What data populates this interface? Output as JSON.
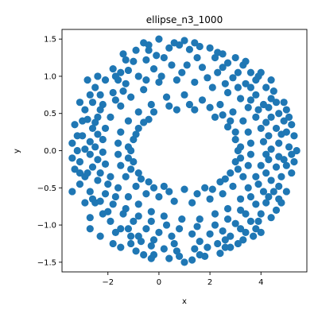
{
  "chart_data": {
    "type": "scatter",
    "title": "ellipse_n3_1000",
    "xlabel": "x",
    "ylabel": "y",
    "xlim": [
      -3.8,
      5.8
    ],
    "ylim": [
      -1.63,
      1.63
    ],
    "x_ticks": [
      -2,
      0,
      2,
      4
    ],
    "y_ticks": [
      -1.5,
      -1.0,
      -0.5,
      0.0,
      0.5,
      1.0,
      1.5
    ],
    "x_tick_labels": [
      "−2",
      "0",
      "2",
      "4"
    ],
    "y_tick_labels": [
      "−1.5",
      "−1.0",
      "−0.5",
      "0.0",
      "0.5",
      "1.0",
      "1.5"
    ],
    "grid": false,
    "marker_color": "#1f77b4",
    "series": [
      {
        "points": [
          [
            1.0,
            1.48
          ],
          [
            0.0,
            1.5
          ],
          [
            -0.6,
            1.45
          ],
          [
            1.6,
            1.4
          ],
          [
            2.0,
            1.38
          ],
          [
            -0.9,
            1.35
          ],
          [
            2.5,
            1.3
          ],
          [
            -1.4,
            1.3
          ],
          [
            3.0,
            1.25
          ],
          [
            -1.5,
            1.05
          ],
          [
            3.6,
            1.05
          ],
          [
            4.0,
            1.05
          ],
          [
            -2.4,
            1.0
          ],
          [
            -2.8,
            0.95
          ],
          [
            4.4,
            0.95
          ],
          [
            4.5,
            0.8
          ],
          [
            -3.1,
            0.65
          ],
          [
            4.9,
            0.65
          ],
          [
            5.0,
            0.55
          ],
          [
            -3.3,
            0.35
          ],
          [
            5.2,
            0.35
          ],
          [
            5.3,
            0.2
          ],
          [
            -3.4,
            0.1
          ],
          [
            5.4,
            0.0
          ],
          [
            -3.4,
            -0.1
          ],
          [
            5.3,
            -0.15
          ],
          [
            -3.3,
            -0.25
          ],
          [
            5.2,
            -0.3
          ],
          [
            -3.1,
            -0.45
          ],
          [
            5.0,
            -0.55
          ],
          [
            -3.4,
            -0.55
          ],
          [
            4.8,
            -0.7
          ],
          [
            -2.9,
            -0.7
          ],
          [
            4.6,
            -0.8
          ],
          [
            -2.7,
            -0.9
          ],
          [
            4.4,
            -0.9
          ],
          [
            -2.7,
            -1.05
          ],
          [
            4.0,
            -1.1
          ],
          [
            -2.3,
            -1.15
          ],
          [
            3.7,
            -1.15
          ],
          [
            -1.8,
            -1.25
          ],
          [
            3.1,
            -1.25
          ],
          [
            -1.5,
            -1.3
          ],
          [
            2.8,
            -1.3
          ],
          [
            -0.9,
            -1.35
          ],
          [
            2.4,
            -1.38
          ],
          [
            -0.6,
            -1.4
          ],
          [
            1.8,
            -1.42
          ],
          [
            -0.3,
            -1.45
          ],
          [
            1.3,
            -1.47
          ],
          [
            0.4,
            -1.45
          ],
          [
            1.0,
            -1.5
          ],
          [
            -0.4,
            1.35
          ],
          [
            0.4,
            1.38
          ],
          [
            0.8,
            1.42
          ],
          [
            1.2,
            1.36
          ],
          [
            -0.1,
            1.28
          ],
          [
            2.2,
            1.25
          ],
          [
            -1.0,
            1.2
          ],
          [
            2.7,
            1.18
          ],
          [
            3.3,
            1.15
          ],
          [
            -1.8,
            1.1
          ],
          [
            -2.1,
            0.95
          ],
          [
            3.8,
            0.95
          ],
          [
            -2.5,
            0.85
          ],
          [
            4.2,
            0.85
          ],
          [
            -2.7,
            0.75
          ],
          [
            4.4,
            0.7
          ],
          [
            -2.9,
            0.55
          ],
          [
            4.7,
            0.5
          ],
          [
            -3.0,
            0.4
          ],
          [
            4.9,
            0.4
          ],
          [
            -3.2,
            0.2
          ],
          [
            5.0,
            0.25
          ],
          [
            -3.2,
            0.0
          ],
          [
            5.1,
            0.05
          ],
          [
            -3.1,
            -0.15
          ],
          [
            5.0,
            -0.2
          ],
          [
            -2.9,
            -0.35
          ],
          [
            4.8,
            -0.35
          ],
          [
            -2.7,
            -0.55
          ],
          [
            4.5,
            -0.55
          ],
          [
            -2.5,
            -0.7
          ],
          [
            4.2,
            -0.7
          ],
          [
            -2.2,
            -0.85
          ],
          [
            4.0,
            -0.85
          ],
          [
            -1.9,
            -0.95
          ],
          [
            3.6,
            -0.95
          ],
          [
            -1.5,
            -1.05
          ],
          [
            3.2,
            -1.05
          ],
          [
            -1.1,
            -1.15
          ],
          [
            2.8,
            -1.15
          ],
          [
            -0.7,
            -1.22
          ],
          [
            2.3,
            -1.25
          ],
          [
            -0.3,
            -1.28
          ],
          [
            1.9,
            -1.3
          ],
          [
            0.2,
            -1.32
          ],
          [
            1.4,
            -1.32
          ],
          [
            0.7,
            -1.35
          ],
          [
            -0.2,
            1.1
          ],
          [
            0.5,
            1.15
          ],
          [
            1.1,
            1.15
          ],
          [
            1.7,
            1.12
          ],
          [
            2.3,
            1.05
          ],
          [
            -0.8,
            1.0
          ],
          [
            2.9,
            0.98
          ],
          [
            -1.3,
            0.9
          ],
          [
            3.4,
            0.9
          ],
          [
            -1.8,
            0.78
          ],
          [
            3.8,
            0.75
          ],
          [
            -2.2,
            0.62
          ],
          [
            4.1,
            0.62
          ],
          [
            -2.4,
            0.45
          ],
          [
            4.4,
            0.45
          ],
          [
            -2.6,
            0.3
          ],
          [
            4.6,
            0.3
          ],
          [
            -2.7,
            0.12
          ],
          [
            4.7,
            0.1
          ],
          [
            -2.7,
            -0.05
          ],
          [
            4.7,
            -0.08
          ],
          [
            -2.6,
            -0.22
          ],
          [
            4.6,
            -0.22
          ],
          [
            -2.4,
            -0.4
          ],
          [
            4.4,
            -0.4
          ],
          [
            -2.1,
            -0.58
          ],
          [
            4.1,
            -0.55
          ],
          [
            -1.8,
            -0.72
          ],
          [
            3.8,
            -0.72
          ],
          [
            -1.4,
            -0.85
          ],
          [
            3.4,
            -0.85
          ],
          [
            -1.0,
            -0.95
          ],
          [
            3.0,
            -0.98
          ],
          [
            -0.5,
            -1.05
          ],
          [
            2.5,
            -1.08
          ],
          [
            0.0,
            -1.1
          ],
          [
            2.0,
            -1.12
          ],
          [
            0.5,
            -1.15
          ],
          [
            1.3,
            -1.12
          ],
          [
            0.0,
            0.92
          ],
          [
            0.7,
            0.95
          ],
          [
            1.4,
            0.92
          ],
          [
            2.1,
            0.85
          ],
          [
            -0.6,
            0.82
          ],
          [
            2.7,
            0.78
          ],
          [
            -1.1,
            0.72
          ],
          [
            3.2,
            0.7
          ],
          [
            -1.5,
            0.6
          ],
          [
            3.5,
            0.58
          ],
          [
            -1.9,
            0.45
          ],
          [
            3.8,
            0.45
          ],
          [
            -2.1,
            0.3
          ],
          [
            4.0,
            0.3
          ],
          [
            -2.2,
            0.15
          ],
          [
            4.1,
            0.12
          ],
          [
            -2.2,
            -0.02
          ],
          [
            4.2,
            -0.05
          ],
          [
            -2.1,
            -0.18
          ],
          [
            4.0,
            -0.2
          ],
          [
            -1.9,
            -0.35
          ],
          [
            3.8,
            -0.35
          ],
          [
            -1.6,
            -0.5
          ],
          [
            3.5,
            -0.5
          ],
          [
            -1.2,
            -0.62
          ],
          [
            3.2,
            -0.65
          ],
          [
            -0.8,
            -0.72
          ],
          [
            2.7,
            -0.78
          ],
          [
            -0.3,
            -0.82
          ],
          [
            2.2,
            -0.85
          ],
          [
            0.2,
            -0.88
          ],
          [
            1.6,
            -0.92
          ],
          [
            0.9,
            -0.92
          ],
          [
            0.3,
            0.72
          ],
          [
            1.0,
            0.75
          ],
          [
            1.7,
            0.68
          ],
          [
            -0.3,
            0.62
          ],
          [
            2.4,
            0.62
          ],
          [
            -0.8,
            0.52
          ],
          [
            2.9,
            0.52
          ],
          [
            -1.2,
            0.4
          ],
          [
            3.3,
            0.4
          ],
          [
            -1.5,
            0.25
          ],
          [
            3.5,
            0.25
          ],
          [
            -1.6,
            0.1
          ],
          [
            3.6,
            0.1
          ],
          [
            -1.6,
            -0.05
          ],
          [
            3.6,
            -0.05
          ],
          [
            -1.5,
            -0.2
          ],
          [
            3.5,
            -0.2
          ],
          [
            -1.3,
            -0.35
          ],
          [
            3.3,
            -0.35
          ],
          [
            -0.9,
            -0.48
          ],
          [
            2.9,
            -0.48
          ],
          [
            -0.5,
            -0.58
          ],
          [
            2.5,
            -0.58
          ],
          [
            0.0,
            -0.62
          ],
          [
            2.0,
            -0.65
          ],
          [
            0.6,
            -0.68
          ],
          [
            1.3,
            -0.7
          ],
          [
            0.7,
            0.55
          ],
          [
            1.4,
            0.55
          ],
          [
            -0.4,
            0.42
          ],
          [
            2.2,
            0.45
          ],
          [
            -0.8,
            0.3
          ],
          [
            2.7,
            0.32
          ],
          [
            -1.0,
            0.15
          ],
          [
            3.0,
            0.15
          ],
          [
            -1.1,
            0.0
          ],
          [
            3.1,
            0.0
          ],
          [
            -1.0,
            -0.15
          ],
          [
            3.0,
            -0.15
          ],
          [
            -0.8,
            -0.3
          ],
          [
            2.8,
            -0.3
          ],
          [
            -0.4,
            -0.42
          ],
          [
            2.4,
            -0.42
          ],
          [
            0.2,
            -0.48
          ],
          [
            1.8,
            -0.5
          ],
          [
            1.0,
            -0.52
          ],
          [
            -0.5,
            1.22
          ],
          [
            0.2,
            1.25
          ],
          [
            1.5,
            1.25
          ],
          [
            2.5,
            1.12
          ],
          [
            -1.2,
            1.08
          ],
          [
            3.1,
            1.05
          ],
          [
            -1.6,
            0.95
          ],
          [
            3.6,
            0.85
          ],
          [
            -2.3,
            0.75
          ],
          [
            4.3,
            0.58
          ],
          [
            -2.8,
            0.42
          ],
          [
            4.8,
            0.22
          ],
          [
            -2.9,
            0.02
          ],
          [
            4.9,
            -0.12
          ],
          [
            -2.8,
            -0.3
          ],
          [
            4.7,
            -0.48
          ],
          [
            -2.3,
            -0.68
          ],
          [
            4.3,
            -0.62
          ],
          [
            -2.0,
            -0.82
          ],
          [
            3.9,
            -0.95
          ],
          [
            -1.2,
            -1.05
          ],
          [
            3.4,
            -1.1
          ],
          [
            -0.8,
            -1.15
          ],
          [
            2.6,
            -1.2
          ],
          [
            -0.2,
            -1.2
          ],
          [
            1.6,
            -1.22
          ],
          [
            0.6,
            -1.25
          ],
          [
            0.1,
            1.0
          ],
          [
            0.9,
            1.05
          ],
          [
            1.9,
            0.98
          ],
          [
            -0.5,
            0.95
          ],
          [
            2.6,
            0.9
          ],
          [
            -1.4,
            0.8
          ],
          [
            3.1,
            0.85
          ],
          [
            -1.7,
            0.68
          ],
          [
            3.6,
            0.68
          ],
          [
            -2.3,
            0.55
          ],
          [
            3.9,
            0.55
          ],
          [
            -2.5,
            0.38
          ],
          [
            4.2,
            0.38
          ],
          [
            -2.4,
            0.22
          ],
          [
            4.3,
            0.2
          ],
          [
            -2.5,
            0.05
          ],
          [
            4.4,
            0.02
          ],
          [
            -2.4,
            -0.12
          ],
          [
            4.3,
            -0.12
          ],
          [
            -2.3,
            -0.3
          ],
          [
            4.2,
            -0.3
          ],
          [
            -2.0,
            -0.45
          ],
          [
            3.9,
            -0.45
          ],
          [
            -1.7,
            -0.62
          ],
          [
            3.6,
            -0.62
          ],
          [
            -1.3,
            -0.78
          ],
          [
            3.2,
            -0.8
          ],
          [
            -0.8,
            -0.88
          ],
          [
            2.7,
            -0.92
          ],
          [
            -0.3,
            -0.95
          ],
          [
            2.2,
            -1.0
          ],
          [
            0.3,
            -1.0
          ],
          [
            1.5,
            -1.02
          ],
          [
            0.8,
            -1.05
          ],
          [
            1.2,
            0.62
          ],
          [
            0.4,
            0.6
          ],
          [
            2.0,
            0.58
          ],
          [
            -0.2,
            0.52
          ],
          [
            2.5,
            0.48
          ],
          [
            -0.6,
            0.38
          ],
          [
            2.8,
            0.4
          ],
          [
            -0.9,
            0.22
          ],
          [
            3.0,
            0.25
          ],
          [
            -1.2,
            0.05
          ],
          [
            3.2,
            0.05
          ],
          [
            -1.2,
            -0.1
          ],
          [
            3.2,
            -0.1
          ],
          [
            -1.1,
            -0.25
          ],
          [
            3.1,
            -0.25
          ],
          [
            -0.7,
            -0.38
          ],
          [
            2.6,
            -0.38
          ],
          [
            -0.2,
            -0.5
          ],
          [
            2.1,
            -0.52
          ],
          [
            0.4,
            -0.55
          ],
          [
            1.5,
            -0.58
          ],
          [
            -3.0,
            0.2
          ],
          [
            -3.1,
            -0.3
          ],
          [
            5.1,
            0.45
          ],
          [
            5.2,
            -0.05
          ],
          [
            -2.6,
            0.65
          ],
          [
            -2.6,
            -0.65
          ],
          [
            4.6,
            0.65
          ],
          [
            4.7,
            -0.65
          ],
          [
            -1.7,
            1.0
          ],
          [
            -1.7,
            -1.1
          ],
          [
            3.9,
            1.0
          ],
          [
            3.8,
            -1.05
          ],
          [
            -0.4,
            1.42
          ],
          [
            0.6,
            1.45
          ],
          [
            1.4,
            1.45
          ],
          [
            2.3,
            1.32
          ],
          [
            -0.2,
            -1.4
          ],
          [
            0.8,
            -1.42
          ],
          [
            1.6,
            -1.4
          ],
          [
            2.6,
            -1.3
          ],
          [
            -1.3,
            1.22
          ],
          [
            3.4,
            1.2
          ],
          [
            -1.1,
            -1.25
          ],
          [
            3.3,
            -1.2
          ]
        ]
      }
    ]
  }
}
